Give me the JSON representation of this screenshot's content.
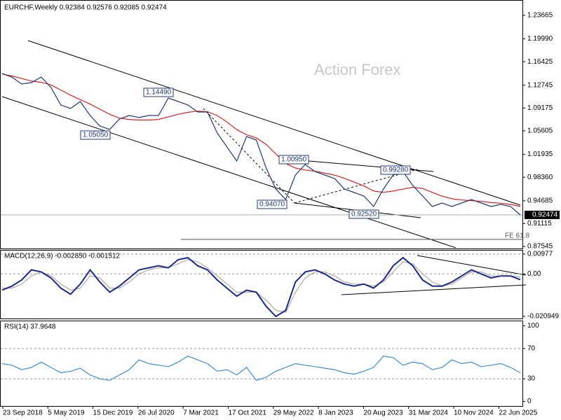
{
  "header": "EURCHF,Weekly  0.92384 0.92576 0.92085 0.92474",
  "watermark": "Action Forex",
  "annotations": [
    "1.14490",
    "1.05050",
    "1.00950",
    "0.99280",
    "0.94070",
    "0.92520",
    "FE 61.8"
  ],
  "x_labels": [
    "23 Sep 2018",
    "5 May 2019",
    "15 Dec 2019",
    "26 Jul 2020",
    "7 Mar 2021",
    "17 Oct 2021",
    "29 May 2022",
    "8 Jan 2023",
    "20 Aug 2023",
    "31 Mar 2024",
    "10 Nov 2024",
    "22 Jun 2025"
  ],
  "chart_data": [
    {
      "type": "line",
      "ylim": [
        0.8722,
        1.2585
      ],
      "yticks": [
        1.23665,
        {
          "value": 1.1999,
          "label": "1.19990"
        },
        1.16425,
        1.12745,
        1.09175,
        1.05605,
        1.01935,
        {
          "value": 0.9836,
          "label": "0.98360"
        },
        0.94685,
        0.91115,
        0.87545
      ],
      "last": 0.92474,
      "series": [
        {
          "color": "#1f3a7a",
          "values": [
            1.1458,
            1.1403,
            1.1294,
            1.1316,
            1.1403,
            1.1239,
            1.0966,
            1.0911,
            1.102,
            1.0801,
            1.0637,
            1.0583,
            1.0747,
            1.0801,
            1.0769,
            1.0801,
            1.0801,
            1.1075,
            1.102,
            1.0966,
            1.0856,
            1.0856,
            1.0528,
            1.0309,
            1.009,
            1.0473,
            1.0418,
            0.9981,
            0.9652,
            0.9488,
            0.9871,
            1.0035,
            0.9926,
            0.9871,
            0.9816,
            0.9652,
            0.9597,
            0.9543,
            0.9379,
            0.9652,
            0.9871,
            0.9926,
            0.9707,
            0.9543,
            0.9379,
            0.9433,
            0.9379,
            0.9433,
            0.9488,
            0.9433,
            0.9379,
            0.9411,
            0.9379,
            0.9247
          ]
        },
        {
          "color": "#e02020",
          "values": [
            1.145,
            1.142,
            1.138,
            1.134,
            1.132,
            1.128,
            1.12,
            1.112,
            1.105,
            1.098,
            1.09,
            1.082,
            1.076,
            1.074,
            1.073,
            1.073,
            1.074,
            1.078,
            1.082,
            1.085,
            1.087,
            1.086,
            1.08,
            1.07,
            1.058,
            1.05,
            1.045,
            1.035,
            1.02,
            1.005,
            0.998,
            0.995,
            0.993,
            0.99,
            0.987,
            0.982,
            0.976,
            0.97,
            0.962,
            0.96,
            0.962,
            0.965,
            0.968,
            0.966,
            0.96,
            0.954,
            0.95,
            0.948,
            0.947,
            0.946,
            0.944,
            0.943,
            0.941,
            0.938
          ]
        }
      ]
    },
    {
      "type": "line",
      "title": "MACD(12,26,9) -0.002850 -0.001512",
      "ylim": [
        -0.022,
        0.0115
      ],
      "yticks": [
        0.00977,
        {
          "value": 0,
          "label": "0.00"
        },
        -0.020949
      ],
      "grid_ticks": [
        0,
        1
      ],
      "series": [
        {
          "color": "#1a2a8c",
          "values": [
            -0.008,
            -0.006,
            -0.003,
            0.002,
            0.001,
            -0.002,
            -0.007,
            -0.01,
            -0.005,
            0.002,
            -0.004,
            -0.009,
            -0.006,
            -0.002,
            0.002,
            0.003,
            0.004,
            0.003,
            0.007,
            0.008,
            0.004,
            0.002,
            -0.003,
            -0.007,
            -0.011,
            -0.008,
            -0.009,
            -0.016,
            -0.021,
            -0.018,
            -0.004,
            0.001,
            0.002,
            0,
            -0.003,
            -0.005,
            -0.006,
            -0.005,
            -0.007,
            -0.003,
            0.004,
            0.008,
            0.004,
            -0.003,
            -0.006,
            -0.006,
            -0.004,
            -0.001,
            0.002,
            0,
            -0.002,
            -0.001,
            -0.001,
            -0.00285
          ]
        },
        {
          "color": "#b0a8a8",
          "values": [
            -0.007,
            -0.007,
            -0.005,
            -0.001,
            0.001,
            -0.001,
            -0.005,
            -0.008,
            -0.007,
            -0.001,
            -0.002,
            -0.007,
            -0.007,
            -0.004,
            0,
            0.002,
            0.003,
            0.003,
            0.005,
            0.007,
            0.006,
            0.003,
            -0.001,
            -0.005,
            -0.009,
            -0.009,
            -0.009,
            -0.013,
            -0.018,
            -0.019,
            -0.009,
            -0.002,
            0.001,
            0.001,
            -0.001,
            -0.004,
            -0.005,
            -0.005,
            -0.006,
            -0.004,
            0.001,
            0.006,
            0.005,
            0,
            -0.004,
            -0.006,
            -0.005,
            -0.002,
            0.001,
            0.001,
            -0.001,
            -0.001,
            -0.001,
            -0.0015
          ]
        }
      ]
    },
    {
      "type": "line",
      "title": "RSI(14) 37.9648",
      "ylim": [
        -6,
        106
      ],
      "yticks": [
        100,
        70,
        30,
        0
      ],
      "grid_ticks": [
        1,
        2
      ],
      "series": [
        {
          "color": "#3a8fd6",
          "values": [
            50,
            48,
            42,
            45,
            52,
            45,
            38,
            40,
            44,
            35,
            30,
            28,
            35,
            42,
            55,
            50,
            48,
            46,
            52,
            60,
            55,
            50,
            40,
            42,
            35,
            45,
            28,
            32,
            40,
            45,
            50,
            48,
            46,
            44,
            42,
            38,
            36,
            40,
            45,
            60,
            58,
            48,
            52,
            50,
            42,
            45,
            55,
            50,
            52,
            46,
            48,
            50,
            45,
            38
          ]
        }
      ]
    }
  ]
}
